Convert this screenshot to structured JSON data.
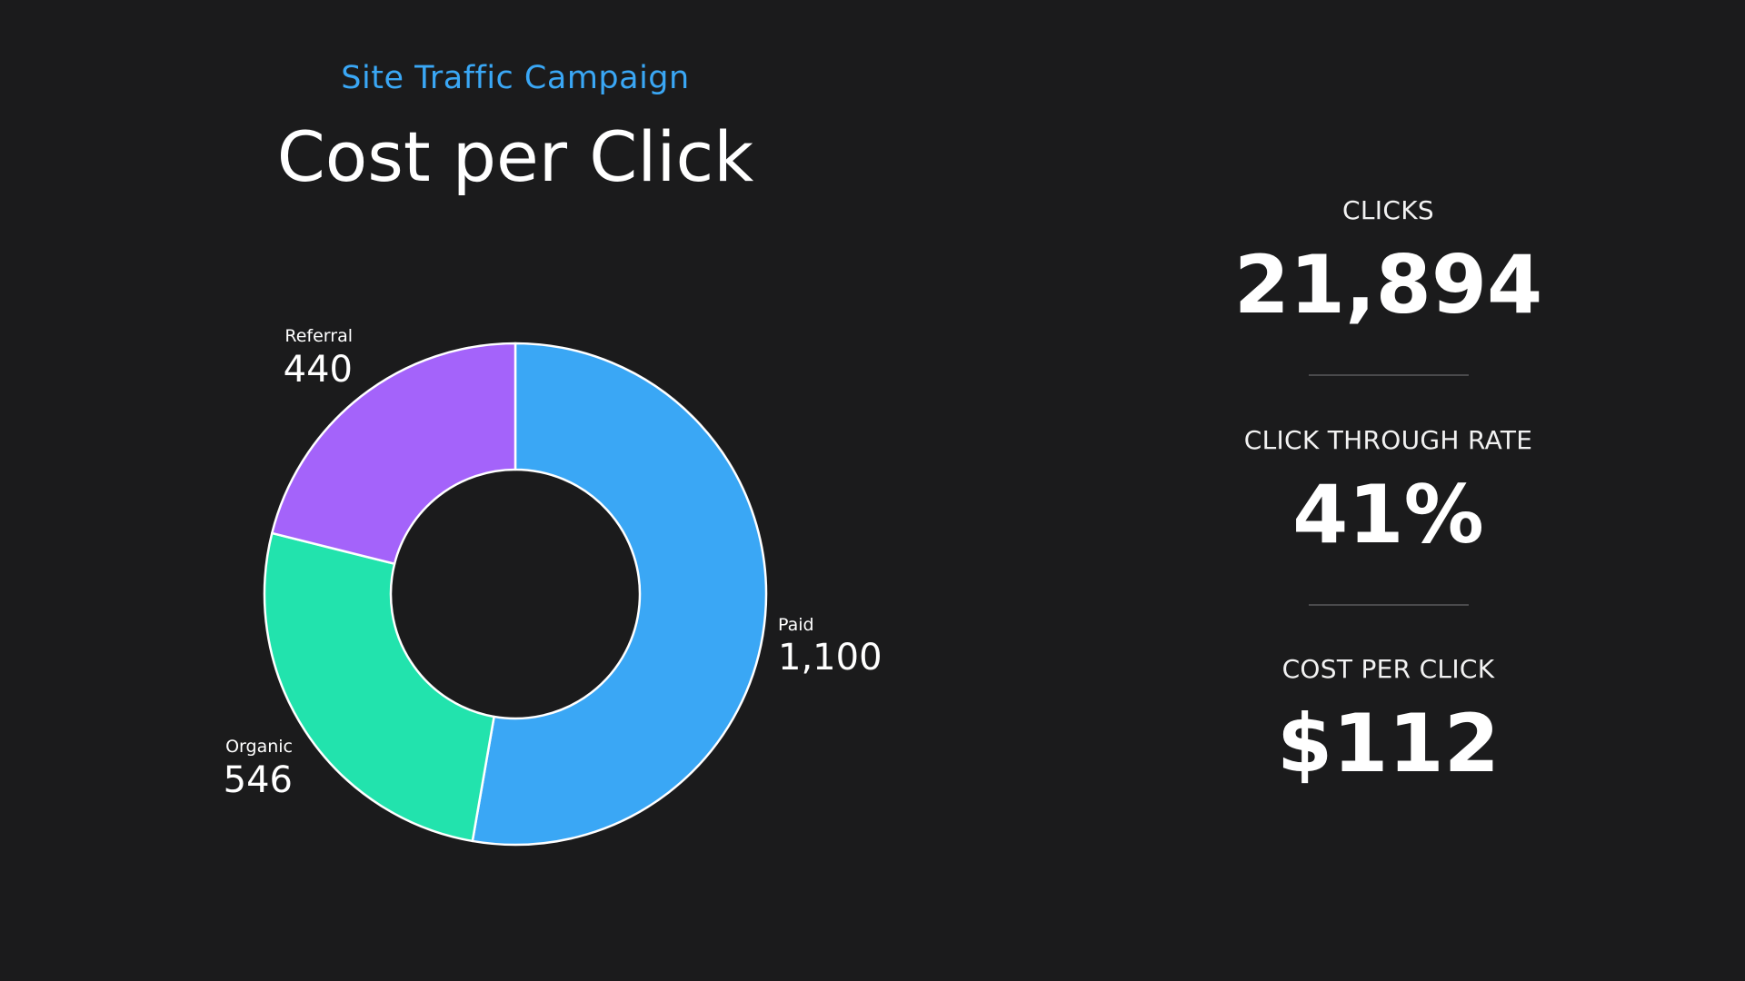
{
  "header": {
    "subtitle": "Site Traffic Campaign",
    "title": "Cost per Click"
  },
  "chart_data": {
    "type": "pie",
    "style": "donut",
    "categories": [
      "Paid",
      "Organic",
      "Referral"
    ],
    "values": [
      1100,
      546,
      440
    ],
    "value_labels": [
      "1,100",
      "546",
      "440"
    ],
    "colors": [
      "#3aa7f5",
      "#22e3ad",
      "#a463fa"
    ],
    "title": "",
    "legend": "none"
  },
  "stats": [
    {
      "label": "CLICKS",
      "value": "21,894"
    },
    {
      "label": "CLICK THROUGH RATE",
      "value": "41%"
    },
    {
      "label": "COST PER CLICK",
      "value": "$112"
    }
  ]
}
